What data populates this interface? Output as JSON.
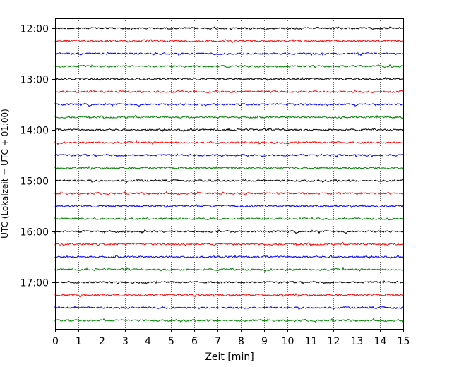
{
  "chart_data": {
    "type": "line",
    "title": "",
    "xlabel": "Zeit  [min]",
    "ylabel": "UTC (Lokalzeit = UTC + 01:00)",
    "xlim": [
      0,
      15
    ],
    "x_ticks": [
      0,
      1,
      2,
      3,
      4,
      5,
      6,
      7,
      8,
      9,
      10,
      11,
      12,
      13,
      14,
      15
    ],
    "y_ticks": [
      "12:00",
      "13:00",
      "14:00",
      "15:00",
      "16:00",
      "17:00"
    ],
    "grid": "vertical dotted",
    "trace_minutes_per_line": 15,
    "start_time": "12:00",
    "trace_colors": [
      "#000000",
      "#ff0000",
      "#0000ff",
      "#008000"
    ],
    "traces": [
      {
        "start": "12:00",
        "color": "#000000"
      },
      {
        "start": "12:15",
        "color": "#ff0000"
      },
      {
        "start": "12:30",
        "color": "#0000ff"
      },
      {
        "start": "12:45",
        "color": "#008000"
      },
      {
        "start": "13:00",
        "color": "#000000"
      },
      {
        "start": "13:15",
        "color": "#ff0000"
      },
      {
        "start": "13:30",
        "color": "#0000ff"
      },
      {
        "start": "13:45",
        "color": "#008000"
      },
      {
        "start": "14:00",
        "color": "#000000"
      },
      {
        "start": "14:15",
        "color": "#ff0000"
      },
      {
        "start": "14:30",
        "color": "#0000ff"
      },
      {
        "start": "14:45",
        "color": "#008000"
      },
      {
        "start": "15:00",
        "color": "#000000"
      },
      {
        "start": "15:15",
        "color": "#ff0000"
      },
      {
        "start": "15:30",
        "color": "#0000ff"
      },
      {
        "start": "15:45",
        "color": "#008000"
      },
      {
        "start": "16:00",
        "color": "#000000"
      },
      {
        "start": "16:15",
        "color": "#ff0000"
      },
      {
        "start": "16:30",
        "color": "#0000ff"
      },
      {
        "start": "16:45",
        "color": "#008000"
      },
      {
        "start": "17:00",
        "color": "#000000"
      },
      {
        "start": "17:15",
        "color": "#ff0000"
      },
      {
        "start": "17:30",
        "color": "#0000ff"
      },
      {
        "start": "17:45",
        "color": "#008000"
      }
    ]
  }
}
